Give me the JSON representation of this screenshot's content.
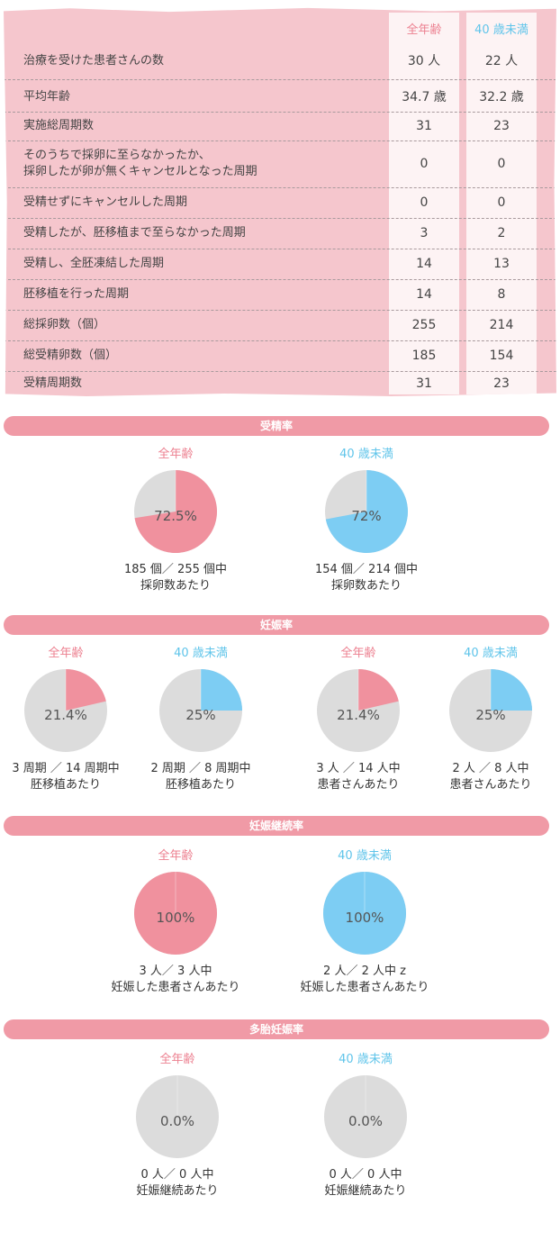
{
  "table": {
    "col_all": "全年齢",
    "col_under40": "40 歳未満",
    "rows": [
      {
        "label": "治療を受けた患者さんの数",
        "all": "30 人",
        "under40": "22 人"
      },
      {
        "label": "平均年齢",
        "all": "34.7 歳",
        "under40": "32.2 歳"
      },
      {
        "label": "実施総周期数",
        "all": "31",
        "under40": "23"
      },
      {
        "label": "そのうちで採卵に至らなかったか、\n採卵したが卵が無くキャンセルとなった周期",
        "all": "0",
        "under40": "0"
      },
      {
        "label": "受精せずにキャンセルした周期",
        "all": "0",
        "under40": "0"
      },
      {
        "label": "受精したが、胚移植まで至らなかった周期",
        "all": "3",
        "under40": "2"
      },
      {
        "label": "受精し、全胚凍結した周期",
        "all": "14",
        "under40": "13"
      },
      {
        "label": "胚移植を行った周期",
        "all": "14",
        "under40": "8"
      },
      {
        "label": "総採卵数（個）",
        "all": "255",
        "under40": "214"
      },
      {
        "label": "総受精卵数（個）",
        "all": "185",
        "under40": "154"
      },
      {
        "label": "受精周期数",
        "all": "31",
        "under40": "23"
      }
    ]
  },
  "colors": {
    "pink": "#f0919e",
    "blue": "#7dcdf3",
    "gray": "#dcdcdc",
    "bar": "#f09aa6"
  },
  "sections": {
    "fertilization": "受精率",
    "pregnancy": "妊娠率",
    "continuation": "妊娠継続率",
    "multiple": "多胎妊娠率"
  },
  "chart_data": [
    {
      "type": "pie",
      "section": "受精率",
      "title": "全年齢",
      "value_percent": 72.5,
      "label": "72.5%",
      "caption": [
        "185 個／ 255 個中",
        "採卵数あたり"
      ]
    },
    {
      "type": "pie",
      "section": "受精率",
      "title": "40 歳未満",
      "value_percent": 72,
      "label": "72%",
      "caption": [
        "154 個／ 214 個中",
        "採卵数あたり"
      ]
    },
    {
      "type": "pie",
      "section": "妊娠率",
      "title": "全年齢",
      "value_percent": 21.4,
      "label": "21.4%",
      "caption": [
        "3 周期 ／ 14 周期中",
        "胚移植あたり"
      ]
    },
    {
      "type": "pie",
      "section": "妊娠率",
      "title": "40 歳未満",
      "value_percent": 25,
      "label": "25%",
      "caption": [
        "2 周期 ／ 8 周期中",
        "胚移植あたり"
      ]
    },
    {
      "type": "pie",
      "section": "妊娠率",
      "title": "全年齢",
      "value_percent": 21.4,
      "label": "21.4%",
      "caption": [
        "3 人 ／ 14 人中",
        "患者さんあたり"
      ]
    },
    {
      "type": "pie",
      "section": "妊娠率",
      "title": "40 歳未満",
      "value_percent": 25,
      "label": "25%",
      "caption": [
        "2 人 ／ 8 人中",
        "患者さんあたり"
      ]
    },
    {
      "type": "pie",
      "section": "妊娠継続率",
      "title": "全年齢",
      "value_percent": 100,
      "label": "100%",
      "caption": [
        "3 人／ 3 人中",
        "妊娠した患者さんあたり"
      ]
    },
    {
      "type": "pie",
      "section": "妊娠継続率",
      "title": "40 歳未満",
      "value_percent": 100,
      "label": "100%",
      "caption": [
        "2 人／ 2 人中 z",
        "妊娠した患者さんあたり"
      ]
    },
    {
      "type": "pie",
      "section": "多胎妊娠率",
      "title": "全年齢",
      "value_percent": 0,
      "label": "0.0%",
      "caption": [
        "0 人／ 0 人中",
        "妊娠継続あたり"
      ]
    },
    {
      "type": "pie",
      "section": "多胎妊娠率",
      "title": "40 歳未満",
      "value_percent": 0,
      "label": "0.0%",
      "caption": [
        "0 人／ 0 人中",
        "妊娠継続あたり"
      ]
    }
  ]
}
